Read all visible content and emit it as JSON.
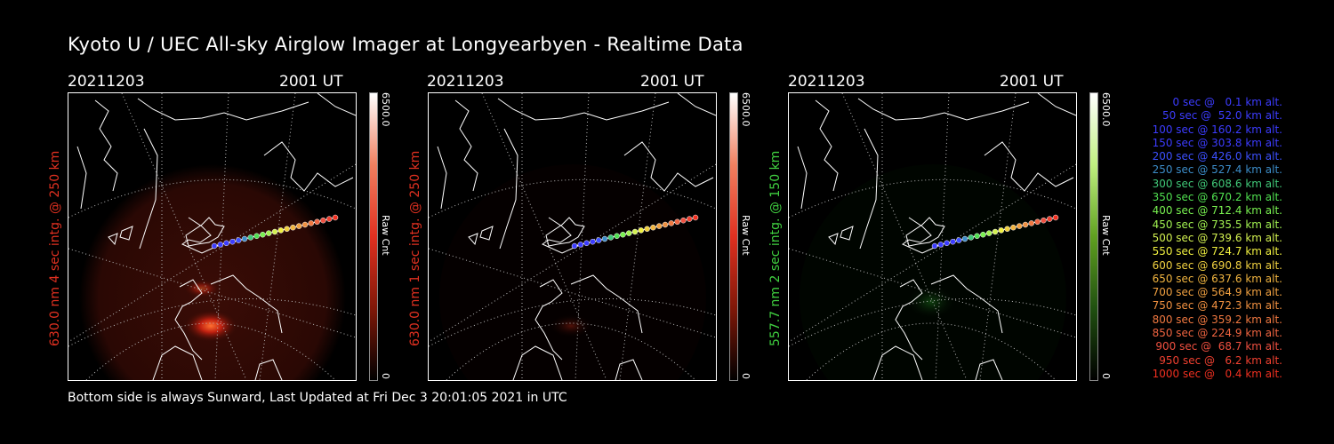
{
  "title": "Kyoto U / UEC All-sky Airglow Imager at Longyearbyen - Realtime Data",
  "footer": "Bottom side is always Sunward, Last Updated at Fri Dec  3 20:01:05 2021 in UTC",
  "panels": [
    {
      "date": "20211203",
      "time": "2001 UT",
      "label": "630.0 nm 4 sec intg. @ 250 km",
      "cbar_max": "6500.0",
      "cbar_min": "0",
      "cbar_unit": "Raw Cnt",
      "color": "#e03020"
    },
    {
      "date": "20211203",
      "time": "2001 UT",
      "label": "630.0 nm 1 sec intg. @ 250 km",
      "cbar_max": "6500.0",
      "cbar_min": "0",
      "cbar_unit": "Raw Cnt",
      "color": "#e03020"
    },
    {
      "date": "20211203",
      "time": "2001 UT",
      "label": "557.7 nm 2 sec intg. @ 150 km",
      "cbar_max": "6500.0",
      "cbar_min": "0",
      "cbar_unit": "Raw Cnt",
      "color": "#40d040"
    }
  ],
  "legend": [
    {
      "text": "0 sec @   0.1 km alt.",
      "color": "#3c3cff"
    },
    {
      "text": "50 sec @  52.0 km alt.",
      "color": "#3c3cff"
    },
    {
      "text": "100 sec @ 160.2 km alt.",
      "color": "#3c3cff"
    },
    {
      "text": "150 sec @ 303.8 km alt.",
      "color": "#3c3cff"
    },
    {
      "text": "200 sec @ 426.0 km alt.",
      "color": "#3c50ff"
    },
    {
      "text": "250 sec @ 527.4 km alt.",
      "color": "#3c8cc8"
    },
    {
      "text": "300 sec @ 608.6 km alt.",
      "color": "#40c878"
    },
    {
      "text": "350 sec @ 670.2 km alt.",
      "color": "#50e050"
    },
    {
      "text": "400 sec @ 712.4 km alt.",
      "color": "#78f050"
    },
    {
      "text": "450 sec @ 735.5 km alt.",
      "color": "#a0f050"
    },
    {
      "text": "500 sec @ 739.6 km alt.",
      "color": "#d2f050"
    },
    {
      "text": "550 sec @ 724.7 km alt.",
      "color": "#f0f040"
    },
    {
      "text": "600 sec @ 690.8 km alt.",
      "color": "#f0d040"
    },
    {
      "text": "650 sec @ 637.6 km alt.",
      "color": "#f0b440"
    },
    {
      "text": "700 sec @ 564.9 km alt.",
      "color": "#f0a040"
    },
    {
      "text": "750 sec @ 472.3 km alt.",
      "color": "#f09040"
    },
    {
      "text": "800 sec @ 359.2 km alt.",
      "color": "#f07840"
    },
    {
      "text": "850 sec @ 224.9 km alt.",
      "color": "#f06440"
    },
    {
      "text": "900 sec @  68.7 km alt.",
      "color": "#f05040"
    },
    {
      "text": "950 sec @   6.2 km alt.",
      "color": "#f04030"
    },
    {
      "text": "1000 sec @   0.4 km alt.",
      "color": "#f03020"
    }
  ]
}
